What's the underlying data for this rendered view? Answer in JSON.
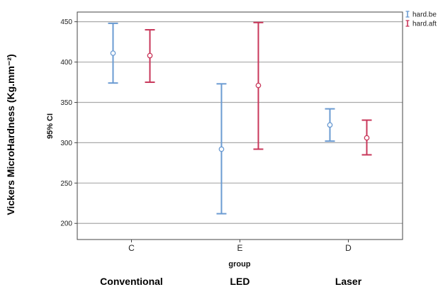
{
  "chart_data": {
    "type": "errorbar",
    "xlabel": "group",
    "ylabel": "95% CI",
    "outer_ylabel": "Vickers MicroHardness (Kg.mm⁻²)",
    "categories": [
      "C",
      "E",
      "D"
    ],
    "group_names": [
      "Conventional",
      "LED",
      "Laser"
    ],
    "ylim": [
      180,
      462
    ],
    "yticks": [
      200,
      250,
      300,
      350,
      400,
      450
    ],
    "grid": true,
    "legend_position": "top-right",
    "series": [
      {
        "name": "hard.be",
        "color": "#6b9bd2",
        "means": [
          411,
          292,
          322
        ],
        "lower": [
          374,
          212,
          302
        ],
        "upper": [
          448,
          373,
          342
        ]
      },
      {
        "name": "hard.aft",
        "color": "#c8375a",
        "means": [
          408,
          371,
          306
        ],
        "lower": [
          375,
          292,
          285
        ],
        "upper": [
          440,
          449,
          328
        ]
      }
    ]
  }
}
